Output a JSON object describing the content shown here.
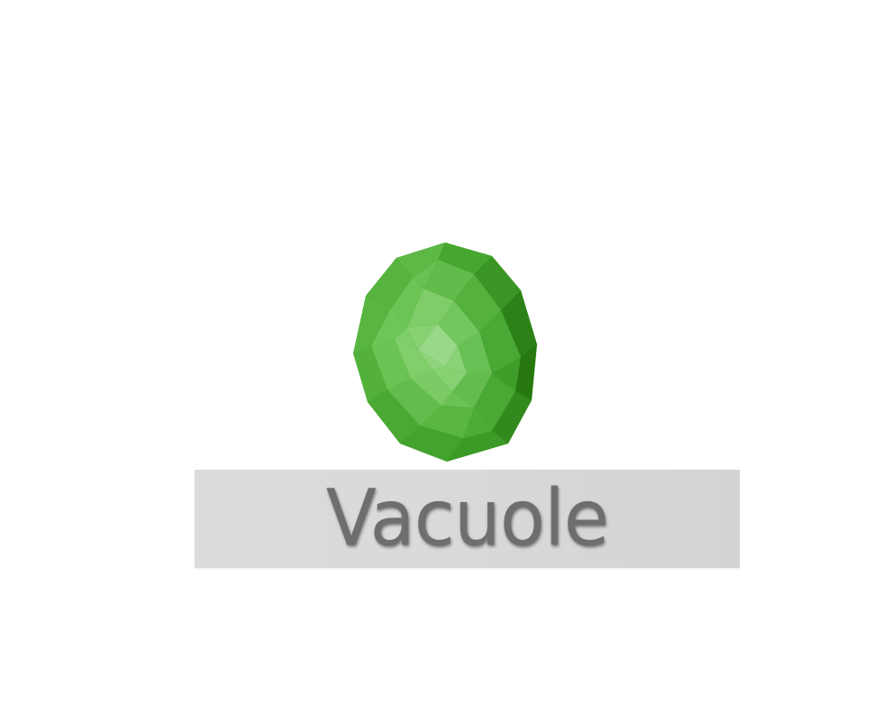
{
  "label": {
    "text": "Vacuole"
  },
  "object": {
    "icon": "green-faceted-sphere-icon",
    "colors": {
      "dark": "#2e8a1c",
      "mid": "#4fb03a",
      "light": "#79c865",
      "highlight": "#9ad889"
    }
  },
  "plate": {
    "color": "#d9d9d9",
    "text_color": "#6e6e6e"
  }
}
